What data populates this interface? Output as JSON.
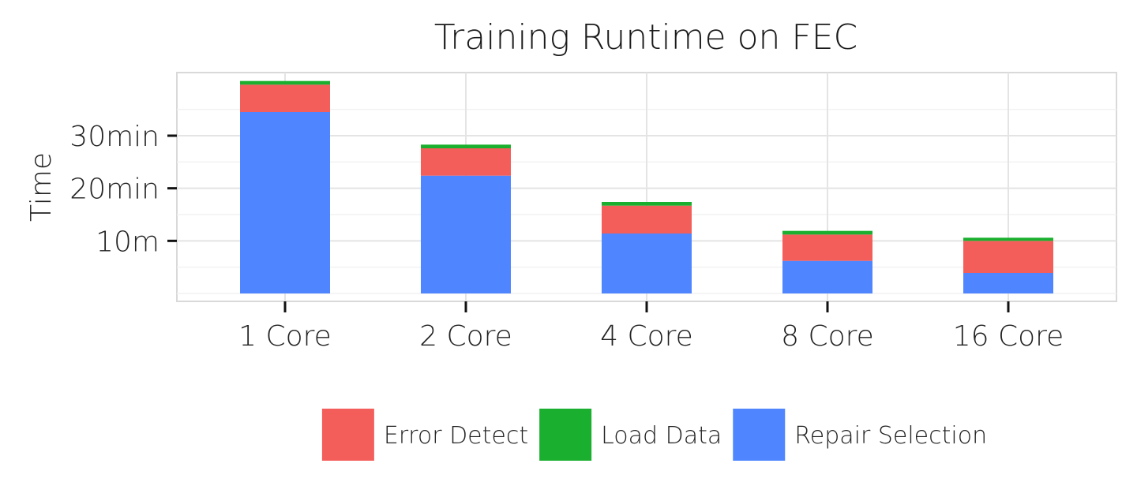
{
  "chart_data": {
    "type": "bar",
    "stacked": true,
    "title": "Training Runtime on FEC",
    "xlabel": "",
    "ylabel": "Time",
    "categories": [
      "1 Core",
      "2 Core",
      "4 Core",
      "8 Core",
      "16 Core"
    ],
    "series": [
      {
        "name": "Repair Selection",
        "color": "#4F86FF",
        "values": [
          34.5,
          22.4,
          11.4,
          6.2,
          3.9
        ]
      },
      {
        "name": "Error Detect",
        "color": "#F35E5A",
        "values": [
          5.2,
          5.2,
          5.3,
          5.0,
          6.1
        ]
      },
      {
        "name": "Load Data",
        "color": "#1AAF2E",
        "values": [
          0.7,
          0.7,
          0.7,
          0.7,
          0.6
        ]
      }
    ],
    "legend_order": [
      "Error Detect",
      "Load Data",
      "Repair Selection"
    ],
    "yticks": [
      {
        "value": 10,
        "label": "10m"
      },
      {
        "value": 20,
        "label": "20min"
      },
      {
        "value": 30,
        "label": "30min"
      }
    ],
    "ylim": [
      -1.5,
      42
    ],
    "grid": true,
    "legend_position": "bottom"
  }
}
